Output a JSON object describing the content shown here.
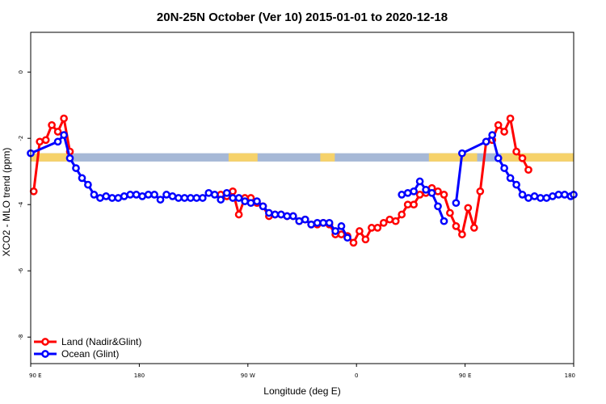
{
  "chart_data": {
    "type": "line",
    "title": "20N-25N October (Ver 10)   2015-01-01 to 2020-12-18",
    "xlabel": "Longitude (deg E)",
    "ylabel": "XCO2 - MLO trend (ppm)",
    "x_axis_ticks": [
      {
        "x": 90,
        "label": "90 E"
      },
      {
        "x": 180,
        "label": "180"
      },
      {
        "x": 270,
        "label": "90 W"
      },
      {
        "x": 360,
        "label": "0"
      },
      {
        "x": 450,
        "label": "90 E"
      },
      {
        "x": 540,
        "label": "180"
      }
    ],
    "y_axis_ticks": [
      {
        "y": 0,
        "label": "0"
      },
      {
        "y": -2,
        "label": "-2"
      },
      {
        "y": -4,
        "label": "-4"
      },
      {
        "y": -6,
        "label": "-6"
      },
      {
        "y": -8,
        "label": "-8"
      }
    ],
    "xlim": [
      90,
      540
    ],
    "ylim": [
      -8.8,
      1.2
    ],
    "grid": false,
    "legend_position": "bottom-left",
    "map_band": {
      "y_top": -2.45,
      "y_bottom": -2.7,
      "ocean_color": "#a6b8d6",
      "land_color": "#f6d26a"
    },
    "land_segments_longitude_deg": [
      [
        90,
        120
      ],
      [
        254,
        278
      ],
      [
        330,
        342
      ],
      [
        420,
        460
      ],
      [
        480,
        540
      ]
    ],
    "series": [
      {
        "name": "Land (Nadir&Glint)",
        "color": "#ff0000",
        "segments": [
          {
            "x": [
              92.5,
              97.5,
              102.5,
              107.5,
              112.5,
              117.5,
              122.5
            ],
            "y": [
              -3.6,
              -2.1,
              -2.05,
              -1.6,
              -1.8,
              -1.4,
              -2.4
            ]
          },
          {
            "x": [
              247.5,
              252.5,
              257.5,
              262.5,
              267.5,
              272.5,
              277.5,
              282.5,
              287.5,
              292.5,
              297.5,
              302.5,
              307.5,
              312.5,
              317.5,
              322.5,
              327.5,
              332.5,
              337.5,
              342.5,
              347.5,
              352.5,
              357.5,
              362.5,
              367.5,
              372.5,
              377.5,
              382.5,
              387.5,
              392.5,
              397.5,
              402.5,
              407.5,
              412.5,
              417.5,
              422.5,
              427.5,
              432.5,
              437.5,
              442.5,
              447.5,
              452.5,
              457.5,
              462.5,
              467.5,
              472.5,
              477.5,
              482.5,
              487.5,
              492.5,
              497.5,
              502.5
            ],
            "y": [
              -3.7,
              -3.75,
              -3.6,
              -4.3,
              -3.8,
              -3.8,
              -3.95,
              -4.05,
              -4.35,
              -4.3,
              -4.3,
              -4.35,
              -4.35,
              -4.5,
              -4.45,
              -4.6,
              -4.6,
              -4.55,
              -4.6,
              -4.9,
              -4.9,
              -4.95,
              -5.15,
              -4.8,
              -5.05,
              -4.7,
              -4.7,
              -4.55,
              -4.45,
              -4.5,
              -4.3,
              -4.0,
              -4.0,
              -3.7,
              -3.65,
              -3.5,
              -3.6,
              -3.7,
              -4.25,
              -4.65,
              -4.9,
              -4.1,
              -4.7,
              -3.6,
              -2.1,
              -2.05,
              -1.6,
              -1.8,
              -1.4,
              -2.4,
              -2.6,
              -2.95
            ]
          }
        ]
      },
      {
        "name": "Ocean (Glint)",
        "color": "#0000ff",
        "segments": [
          {
            "x": [
              90.0,
              112.5,
              117.5,
              122.5,
              127.5,
              132.5,
              137.5,
              142.5,
              147.5,
              152.5,
              157.5,
              162.5,
              167.5,
              172.5,
              177.5,
              182.5,
              187.5,
              192.5,
              197.5,
              202.5,
              207.5,
              212.5,
              217.5,
              222.5,
              227.5,
              232.5,
              237.5,
              242.5,
              247.5,
              252.5,
              257.5,
              262.5,
              267.5,
              272.5,
              277.5,
              282.5,
              287.5,
              292.5,
              297.5,
              302.5,
              307.5,
              312.5,
              317.5,
              322.5,
              327.5,
              332.5,
              337.5,
              342.5,
              347.5,
              352.5
            ],
            "y": [
              -2.45,
              -2.1,
              -1.9,
              -2.6,
              -2.9,
              -3.2,
              -3.4,
              -3.7,
              -3.8,
              -3.75,
              -3.8,
              -3.8,
              -3.75,
              -3.7,
              -3.7,
              -3.75,
              -3.7,
              -3.7,
              -3.85,
              -3.7,
              -3.75,
              -3.8,
              -3.8,
              -3.8,
              -3.8,
              -3.8,
              -3.65,
              -3.7,
              -3.85,
              -3.65,
              -3.8,
              -3.8,
              -3.9,
              -3.95,
              -3.9,
              -4.05,
              -4.25,
              -4.3,
              -4.3,
              -4.35,
              -4.35,
              -4.5,
              -4.45,
              -4.6,
              -4.55,
              -4.55,
              -4.55,
              -4.8,
              -4.65,
              -5.0
            ]
          },
          {
            "x": [
              397.5,
              402.5,
              407.5,
              412.5,
              417.5,
              422.5,
              427.5,
              432.5
            ],
            "y": [
              -3.7,
              -3.65,
              -3.6,
              -3.3,
              -3.55,
              -3.65,
              -4.05,
              -4.5
            ]
          },
          {
            "x": [
              442.5,
              447.5,
              467.5,
              472.5,
              477.5,
              482.5,
              487.5,
              492.5,
              497.5,
              502.5,
              507.5,
              512.5,
              517.5,
              522.5,
              527.5,
              532.5,
              537.5,
              540.0
            ],
            "y": [
              -3.95,
              -2.45,
              -2.1,
              -1.9,
              -2.6,
              -2.9,
              -3.2,
              -3.4,
              -3.7,
              -3.8,
              -3.75,
              -3.8,
              -3.8,
              -3.75,
              -3.7,
              -3.7,
              -3.75,
              -3.7
            ]
          }
        ]
      }
    ]
  }
}
